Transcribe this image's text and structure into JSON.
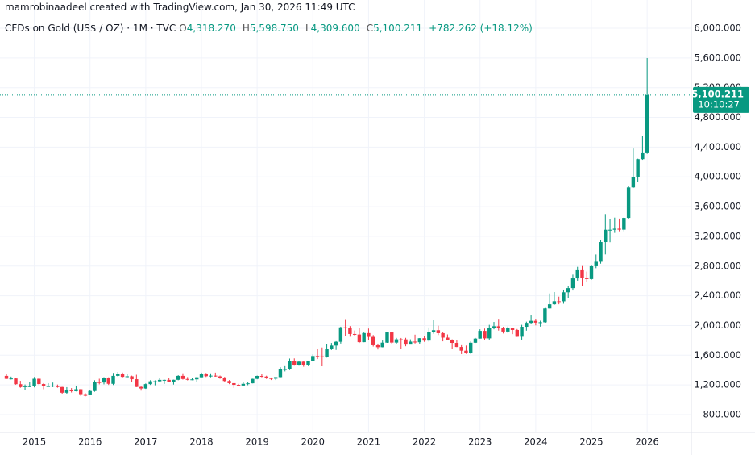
{
  "chart_data": {
    "type": "candlestick",
    "title": "mamrobinaadeel created with TradingView.com, Jan 30, 2026 11:49 UTC",
    "legend": {
      "symbol": "CFDs on Gold (US$ / OZ) · 1M · TVC",
      "items": [
        {
          "key": "O",
          "value": "4,318.270"
        },
        {
          "key": "H",
          "value": "5,598.750"
        },
        {
          "key": "L",
          "value": "4,309.600"
        },
        {
          "key": "C",
          "value": "5,100.211"
        }
      ],
      "change": "+782.262 (+18.12%)"
    },
    "categories": [
      null,
      null,
      null,
      null,
      null,
      null,
      "2015",
      null,
      null,
      null,
      null,
      null,
      null,
      null,
      null,
      null,
      null,
      null,
      "2016",
      null,
      null,
      null,
      null,
      null,
      null,
      null,
      null,
      null,
      null,
      null,
      "2017",
      null,
      null,
      null,
      null,
      null,
      null,
      null,
      null,
      null,
      null,
      null,
      "2018",
      null,
      null,
      null,
      null,
      null,
      null,
      null,
      null,
      null,
      null,
      null,
      "2019",
      null,
      null,
      null,
      null,
      null,
      null,
      null,
      null,
      null,
      null,
      null,
      "2020",
      null,
      null,
      null,
      null,
      null,
      null,
      null,
      null,
      null,
      null,
      null,
      "2021",
      null,
      null,
      null,
      null,
      null,
      null,
      null,
      null,
      null,
      null,
      null,
      "2022",
      null,
      null,
      null,
      null,
      null,
      null,
      null,
      null,
      null,
      null,
      null,
      "2023",
      null,
      null,
      null,
      null,
      null,
      null,
      null,
      null,
      null,
      null,
      null,
      "2024",
      null,
      null,
      null,
      null,
      null,
      null,
      null,
      null,
      null,
      null,
      null,
      "2025",
      null,
      null,
      null,
      null,
      null,
      null,
      null,
      null,
      null,
      null,
      null,
      "2026"
    ],
    "open": [
      1322,
      1282,
      1287,
      1210,
      1171,
      1182,
      1183,
      1283,
      1212,
      1183,
      1184,
      1190,
      1172,
      1095,
      1133,
      1115,
      1142,
      1065,
      1061,
      1118,
      1238,
      1233,
      1293,
      1215,
      1322,
      1351,
      1309,
      1316,
      1277,
      1173,
      1152,
      1211,
      1249,
      1249,
      1268,
      1268,
      1242,
      1269,
      1322,
      1280,
      1271,
      1275,
      1303,
      1345,
      1318,
      1325,
      1315,
      1299,
      1253,
      1224,
      1201,
      1192,
      1215,
      1222,
      1282,
      1321,
      1313,
      1292,
      1284,
      1305,
      1409,
      1413,
      1520,
      1472,
      1513,
      1464,
      1517,
      1589,
      1585,
      1577,
      1686,
      1730,
      1781,
      1975,
      1967,
      1886,
      1879,
      1776,
      1898,
      1847,
      1734,
      1708,
      1769,
      1907,
      1770,
      1814,
      1813,
      1743,
      1783,
      1775,
      1829,
      1797,
      1909,
      1937,
      1897,
      1837,
      1807,
      1766,
      1711,
      1661,
      1633,
      1768,
      1824,
      1928,
      1827,
      1969,
      1990,
      1963,
      1919,
      1965,
      1940,
      1849,
      1983,
      2036,
      2063,
      2039,
      2044,
      2230,
      2286,
      2327,
      2326,
      2447,
      2503,
      2634,
      2744,
      2643,
      2625,
      2798,
      2858,
      3123,
      3289,
      3289,
      3303,
      3290,
      3448,
      3858,
      4000,
      4239,
      4318.27
    ],
    "high": [
      1345,
      1312,
      1290,
      1255,
      1206,
      1238,
      1307,
      1296,
      1224,
      1224,
      1232,
      1205,
      1175,
      1170,
      1157,
      1191,
      1145,
      1088,
      1128,
      1263,
      1283,
      1304,
      1303,
      1362,
      1375,
      1367,
      1352,
      1325,
      1337,
      1188,
      1220,
      1264,
      1262,
      1296,
      1272,
      1296,
      1271,
      1331,
      1357,
      1306,
      1299,
      1307,
      1366,
      1361,
      1356,
      1366,
      1326,
      1309,
      1266,
      1221,
      1214,
      1243,
      1237,
      1284,
      1326,
      1347,
      1324,
      1300,
      1306,
      1439,
      1453,
      1555,
      1557,
      1517,
      1516,
      1525,
      1611,
      1689,
      1704,
      1748,
      1765,
      1789,
      1984,
      2075,
      1992,
      1933,
      1966,
      1906,
      1959,
      1872,
      1756,
      1798,
      1913,
      1917,
      1833,
      1832,
      1834,
      1814,
      1877,
      1831,
      1853,
      1974,
      2070,
      1998,
      1910,
      1880,
      1814,
      1808,
      1735,
      1730,
      1786,
      1833,
      1949,
      1959,
      2009,
      2048,
      2079,
      1983,
      1987,
      1949,
      1953,
      2009,
      2052,
      2135,
      2088,
      2065,
      2236,
      2431,
      2450,
      2388,
      2483,
      2531,
      2685,
      2790,
      2801,
      2726,
      2817,
      2956,
      3148,
      3500,
      3435,
      3452,
      3439,
      3454,
      3872,
      4381,
      4245,
      4550,
      5598.75
    ],
    "low": [
      1280,
      1273,
      1204,
      1161,
      1131,
      1170,
      1167,
      1198,
      1142,
      1175,
      1170,
      1162,
      1077,
      1080,
      1098,
      1112,
      1053,
      1046,
      1062,
      1108,
      1208,
      1208,
      1200,
      1199,
      1310,
      1301,
      1302,
      1241,
      1171,
      1123,
      1146,
      1200,
      1195,
      1241,
      1214,
      1236,
      1205,
      1263,
      1272,
      1261,
      1264,
      1236,
      1302,
      1307,
      1303,
      1310,
      1282,
      1245,
      1211,
      1160,
      1180,
      1183,
      1196,
      1221,
      1276,
      1303,
      1281,
      1266,
      1266,
      1302,
      1382,
      1400,
      1459,
      1459,
      1445,
      1454,
      1517,
      1548,
      1451,
      1568,
      1670,
      1671,
      1757,
      1863,
      1849,
      1860,
      1765,
      1775,
      1802,
      1717,
      1677,
      1706,
      1766,
      1750,
      1751,
      1688,
      1721,
      1746,
      1758,
      1753,
      1780,
      1782,
      1890,
      1872,
      1787,
      1805,
      1681,
      1709,
      1615,
      1618,
      1616,
      1765,
      1823,
      1804,
      1810,
      1949,
      1932,
      1893,
      1902,
      1884,
      1846,
      1810,
      1931,
      2016,
      2002,
      1985,
      2039,
      2228,
      2277,
      2286,
      2293,
      2364,
      2471,
      2603,
      2536,
      2583,
      2614,
      2772,
      2833,
      2957,
      3121,
      3247,
      3268,
      3269,
      3436,
      3850,
      3930,
      4230,
      4309.6
    ],
    "close": [
      1282,
      1287,
      1210,
      1171,
      1182,
      1183,
      1283,
      1212,
      1183,
      1184,
      1190,
      1172,
      1095,
      1133,
      1115,
      1142,
      1065,
      1061,
      1118,
      1238,
      1233,
      1293,
      1215,
      1322,
      1351,
      1309,
      1316,
      1277,
      1173,
      1152,
      1211,
      1249,
      1249,
      1268,
      1268,
      1242,
      1269,
      1322,
      1280,
      1271,
      1275,
      1303,
      1345,
      1318,
      1325,
      1315,
      1299,
      1253,
      1224,
      1201,
      1192,
      1215,
      1222,
      1282,
      1321,
      1313,
      1292,
      1284,
      1305,
      1409,
      1413,
      1520,
      1472,
      1513,
      1464,
      1517,
      1589,
      1585,
      1577,
      1686,
      1730,
      1781,
      1975,
      1967,
      1886,
      1879,
      1776,
      1898,
      1847,
      1734,
      1708,
      1769,
      1907,
      1770,
      1814,
      1813,
      1743,
      1783,
      1775,
      1829,
      1797,
      1909,
      1937,
      1897,
      1837,
      1807,
      1766,
      1711,
      1661,
      1633,
      1768,
      1824,
      1928,
      1827,
      1969,
      1990,
      1963,
      1919,
      1965,
      1940,
      1849,
      1983,
      2036,
      2063,
      2039,
      2044,
      2230,
      2286,
      2327,
      2326,
      2447,
      2503,
      2634,
      2744,
      2643,
      2625,
      2798,
      2858,
      3123,
      3289,
      3289,
      3303,
      3290,
      3448,
      3858,
      4000,
      4239,
      4318,
      5100.211
    ],
    "up_color": "#089981",
    "down_color": "#f23645",
    "ylim": [
      572,
      6380
    ],
    "yticks": [
      {
        "value": 800,
        "label": "800.000"
      },
      {
        "value": 1200,
        "label": "1,200.000"
      },
      {
        "value": 1600,
        "label": "1,600.000"
      },
      {
        "value": 2000,
        "label": "2,000.000"
      },
      {
        "value": 2400,
        "label": "2,400.000"
      },
      {
        "value": 2800,
        "label": "2,800.000"
      },
      {
        "value": 3200,
        "label": "3,200.000"
      },
      {
        "value": 3600,
        "label": "3,600.000"
      },
      {
        "value": 4000,
        "label": "4,000.000"
      },
      {
        "value": 4400,
        "label": "4,400.000"
      },
      {
        "value": 4800,
        "label": "4,800.000"
      },
      {
        "value": 5200,
        "label": "5,200.000"
      },
      {
        "value": 5600,
        "label": "5,600.000"
      },
      {
        "value": 6000,
        "label": "6,000.000"
      }
    ],
    "grid": true,
    "last_price": {
      "value": 5100.211,
      "label": "5,100.211",
      "countdown": "10:10:27"
    }
  }
}
